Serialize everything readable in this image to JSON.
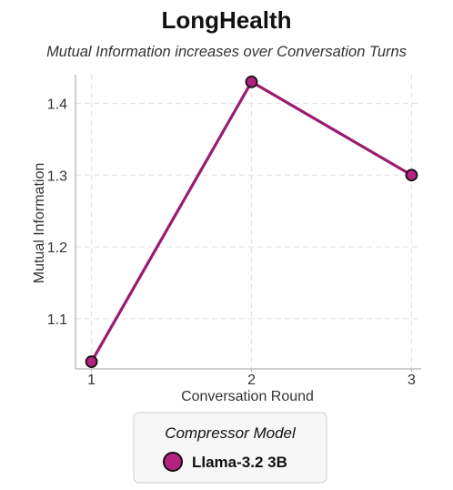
{
  "chart_data": {
    "type": "line",
    "title": "LongHealth",
    "subtitle": "Mutual Information increases over Conversation Turns",
    "xlabel": "Conversation Round",
    "ylabel": "Mutual Information",
    "x": [
      1,
      2,
      3
    ],
    "x_ticks": [
      "1",
      "2",
      "3"
    ],
    "y_ticks": [
      "1.1",
      "1.2",
      "1.3",
      "1.4"
    ],
    "ylim": [
      1.03,
      1.44
    ],
    "xlim": [
      0.9,
      3.06
    ],
    "grid": true,
    "legend_title": "Compressor Model",
    "legend_placement": "bottom-center",
    "series": [
      {
        "name": "Llama-3.2 3B",
        "values": [
          1.04,
          1.43,
          1.3
        ],
        "color": "#9b1b6e",
        "marker_color": "#b5217f"
      }
    ]
  }
}
